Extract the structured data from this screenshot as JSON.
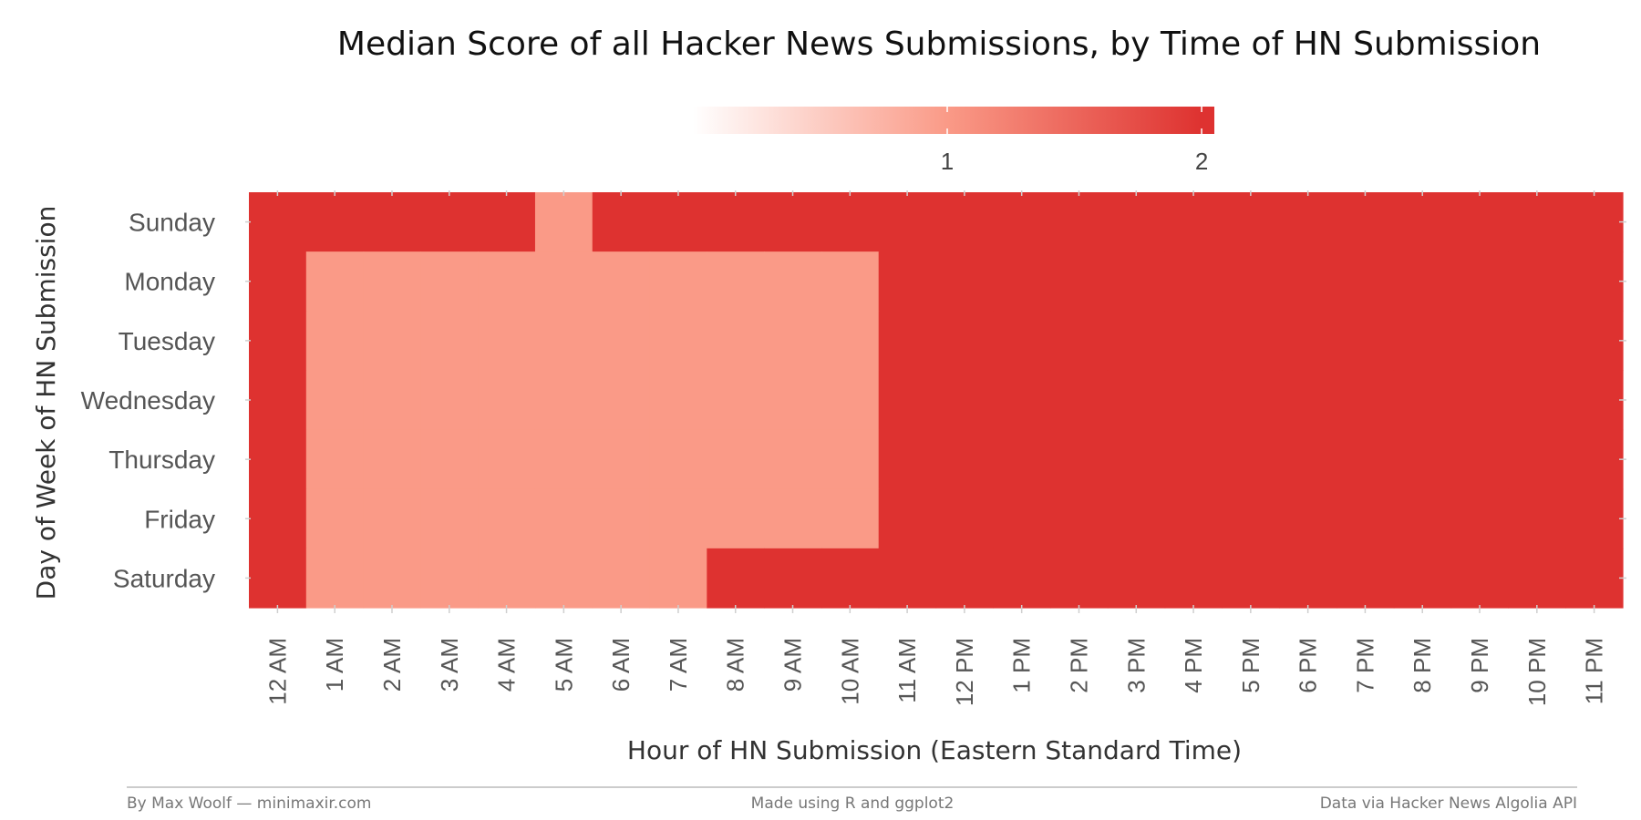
{
  "chart_data": {
    "type": "heatmap",
    "title": "Median Score of all Hacker News Submissions, by Time of HN Submission",
    "xlabel": "Hour of HN Submission (Eastern Standard Time)",
    "ylabel": "Day of Week of HN Submission",
    "x_categories": [
      "12 AM",
      "1 AM",
      "2 AM",
      "3 AM",
      "4 AM",
      "5 AM",
      "6 AM",
      "7 AM",
      "8 AM",
      "9 AM",
      "10 AM",
      "11 AM",
      "12 PM",
      "1 PM",
      "2 PM",
      "3 PM",
      "4 PM",
      "5 PM",
      "6 PM",
      "7 PM",
      "8 PM",
      "9 PM",
      "10 PM",
      "11 PM"
    ],
    "y_categories": [
      "Sunday",
      "Monday",
      "Tuesday",
      "Wednesday",
      "Thursday",
      "Friday",
      "Saturday"
    ],
    "values": [
      [
        2,
        2,
        2,
        2,
        2,
        1,
        2,
        2,
        2,
        2,
        2,
        2,
        2,
        2,
        2,
        2,
        2,
        2,
        2,
        2,
        2,
        2,
        2,
        2
      ],
      [
        2,
        1,
        1,
        1,
        1,
        1,
        1,
        1,
        1,
        1,
        1,
        2,
        2,
        2,
        2,
        2,
        2,
        2,
        2,
        2,
        2,
        2,
        2,
        2
      ],
      [
        2,
        1,
        1,
        1,
        1,
        1,
        1,
        1,
        1,
        1,
        1,
        2,
        2,
        2,
        2,
        2,
        2,
        2,
        2,
        2,
        2,
        2,
        2,
        2
      ],
      [
        2,
        1,
        1,
        1,
        1,
        1,
        1,
        1,
        1,
        1,
        1,
        2,
        2,
        2,
        2,
        2,
        2,
        2,
        2,
        2,
        2,
        2,
        2,
        2
      ],
      [
        2,
        1,
        1,
        1,
        1,
        1,
        1,
        1,
        1,
        1,
        1,
        2,
        2,
        2,
        2,
        2,
        2,
        2,
        2,
        2,
        2,
        2,
        2,
        2
      ],
      [
        2,
        1,
        1,
        1,
        1,
        1,
        1,
        1,
        1,
        1,
        1,
        2,
        2,
        2,
        2,
        2,
        2,
        2,
        2,
        2,
        2,
        2,
        2,
        2
      ],
      [
        2,
        1,
        1,
        1,
        1,
        1,
        1,
        1,
        2,
        2,
        2,
        2,
        2,
        2,
        2,
        2,
        2,
        2,
        2,
        2,
        2,
        2,
        2,
        2
      ]
    ],
    "legend": {
      "placement": "top",
      "ticks": [
        1,
        2
      ],
      "range": [
        0,
        2.05
      ],
      "low_color": "#ffffff",
      "mid_color": "#fa9a87",
      "high_color": "#de3230"
    },
    "colors": {
      "1": "#fa9a87",
      "2": "#de3230"
    },
    "grid": false
  },
  "footer": {
    "left": "By Max Woolf — minimaxir.com",
    "center": "Made using R and ggplot2",
    "right": "Data via Hacker News Algolia API"
  }
}
